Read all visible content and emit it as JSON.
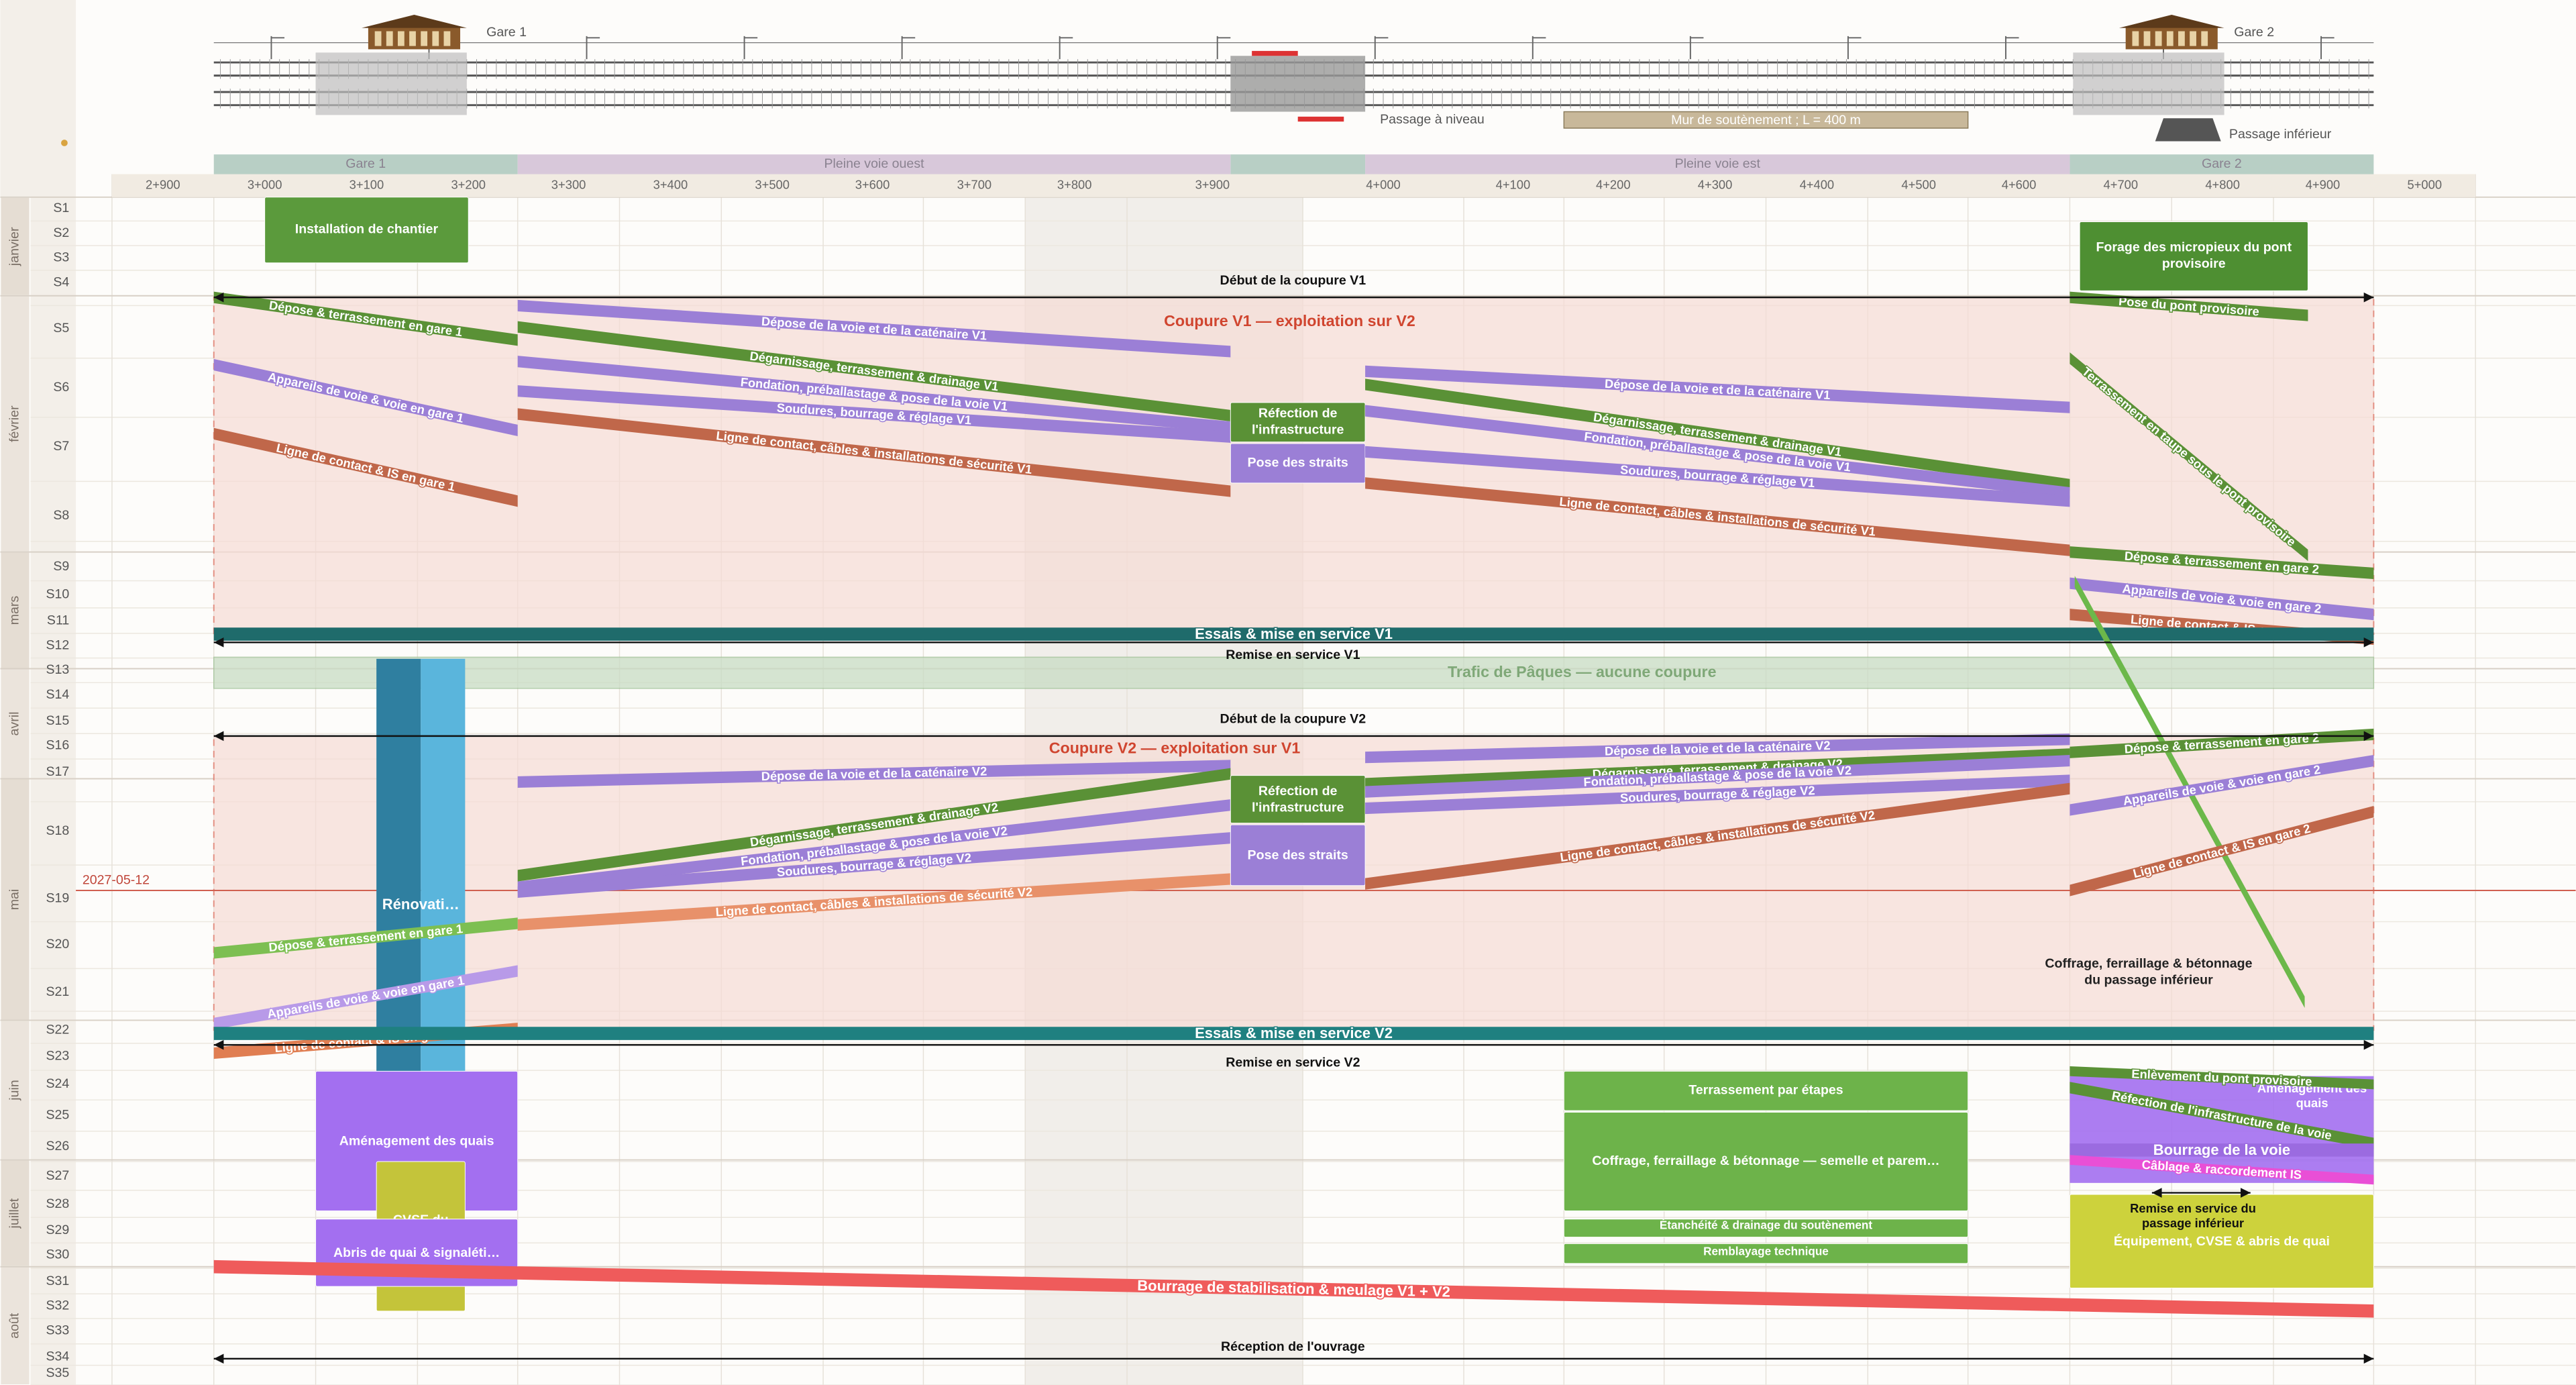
{
  "header": {
    "stations": [
      "Gare 1",
      "Gare 2"
    ],
    "features": [
      "Passage à niveau",
      "Mur de soutènement ; L = 400 m",
      "Passage inférieur"
    ]
  },
  "zones": [
    "Gare 1",
    "Pleine voie ouest",
    "Pleine voie est",
    "Gare 2"
  ],
  "chainages": [
    "2+900",
    "3+000",
    "3+100",
    "3+200",
    "3+300",
    "3+400",
    "3+500",
    "3+600",
    "3+700",
    "3+800",
    "3+900",
    "4+000",
    "4+100",
    "4+200",
    "4+300",
    "4+400",
    "4+500",
    "4+600",
    "4+700",
    "4+800",
    "4+900",
    "5+000"
  ],
  "months": [
    "janvier",
    "février",
    "mars",
    "avril",
    "mai",
    "juin",
    "juillet",
    "août"
  ],
  "weeks": [
    "S1",
    "S2",
    "S3",
    "S4",
    "S5",
    "S6",
    "S7",
    "S8",
    "S9",
    "S10",
    "S11",
    "S12",
    "S13",
    "S14",
    "S15",
    "S16",
    "S17",
    "S18",
    "S19",
    "S20",
    "S21",
    "S22",
    "S23",
    "S24",
    "S25",
    "S26",
    "S27",
    "S28",
    "S29",
    "S30",
    "S31",
    "S32",
    "S33",
    "S34",
    "S35"
  ],
  "today": "2027-05-12",
  "windows": [
    "Coupure V1 — exploitation sur V2",
    "Coupure V2 — exploitation sur V1",
    "Trafic de Pâques — aucune coupure"
  ],
  "milestones": [
    "Début de la coupure V1",
    "Remise en service V1",
    "Début de la coupure V2",
    "Remise en service V2",
    "Réception de l'ouvrage",
    "Remise en service du passage inférieur"
  ],
  "tasks": [
    {
      "label": "Installation de chantier"
    },
    {
      "label": "Forage des micropieux du pont provisoire"
    },
    {
      "label": "Dépose & terrassement en gare 1"
    },
    {
      "label": "Appareils de voie & voie en gare 1"
    },
    {
      "label": "Ligne de contact & IS en gare 1"
    },
    {
      "label": "Dépose de la voie et de la caténaire V1"
    },
    {
      "label": "Dégarnissage, terrassement & drainage V1"
    },
    {
      "label": "Fondation, préballastage & pose de la voie V1"
    },
    {
      "label": "Soudures, bourrage & réglage V1"
    },
    {
      "label": "Ligne de contact, câbles & installations de sécurité V1"
    },
    {
      "label": "Réfection de l'infrastructure"
    },
    {
      "label": "Pose des straits"
    },
    {
      "label": "Dépose de la voie et de la caténaire V1"
    },
    {
      "label": "Dégarnissage, terrassement & drainage V1"
    },
    {
      "label": "Fondation, préballastage & pose de la voie V1"
    },
    {
      "label": "Soudures, bourrage & réglage V1"
    },
    {
      "label": "Ligne de contact, câbles & installations de sécurité V1"
    },
    {
      "label": "Pose du pont provisoire"
    },
    {
      "label": "Terrassement en taupe sous le pont provisoire"
    },
    {
      "label": "Dépose & terrassement en gare 2"
    },
    {
      "label": "Appareils de voie & voie en gare 2"
    },
    {
      "label": "Ligne de contact & IS en gare 2"
    },
    {
      "label": "Essais & mise en service V1"
    },
    {
      "label": "Rénovati…"
    },
    {
      "label": "Coffrage, ferraillage & bétonnage du passage inférieur"
    },
    {
      "label": "Dépose de la voie et de la caténaire V2"
    },
    {
      "label": "Dégarnissage, terrassement & drainage V2"
    },
    {
      "label": "Fondation, préballastage & pose de la voie V2"
    },
    {
      "label": "Soudures, bourrage & réglage V2"
    },
    {
      "label": "Ligne de contact, câbles & installations de sécurité V2"
    },
    {
      "label": "Réfection de l'infrastructure"
    },
    {
      "label": "Pose des straits"
    },
    {
      "label": "Dépose de la voie et de la caténaire V2"
    },
    {
      "label": "Dégarnissage, terrassement & drainage V2"
    },
    {
      "label": "Fondation, préballastage & pose de la voie V2"
    },
    {
      "label": "Soudures, bourrage & réglage V2"
    },
    {
      "label": "Ligne de contact, câbles & installations de sécurité V2"
    },
    {
      "label": "Dépose & terrassement en gare 2"
    },
    {
      "label": "Appareils de voie & voie en gare 2"
    },
    {
      "label": "Ligne de contact & IS en gare 2"
    },
    {
      "label": "Dépose & terrassement en gare 1"
    },
    {
      "label": "Appareils de voie & voie en gare 1"
    },
    {
      "label": "Ligne de contact & IS en gare 1"
    },
    {
      "label": "Essais & mise en service V2"
    },
    {
      "label": "Aménagement des quais"
    },
    {
      "label": "CVSE du bâtiment voyageurs"
    },
    {
      "label": "Abris de quai & signaléti…"
    },
    {
      "label": "Terrassement par étapes"
    },
    {
      "label": "Coffrage, ferraillage & bétonnage — semelle et parem…"
    },
    {
      "label": "Étanchéité & drainage du soutènement"
    },
    {
      "label": "Remblayage technique"
    },
    {
      "label": "Aménagement des quais"
    },
    {
      "label": "Enlèvement du pont provisoire"
    },
    {
      "label": "Réfection de l'infrastructure de la voie"
    },
    {
      "label": "Bourrage de la voie"
    },
    {
      "label": "Câblage & raccordement IS"
    },
    {
      "label": "Équipement, CVSE & abris de quai"
    },
    {
      "label": "Bourrage de stabilisation & meulage V1 + V2"
    }
  ]
}
